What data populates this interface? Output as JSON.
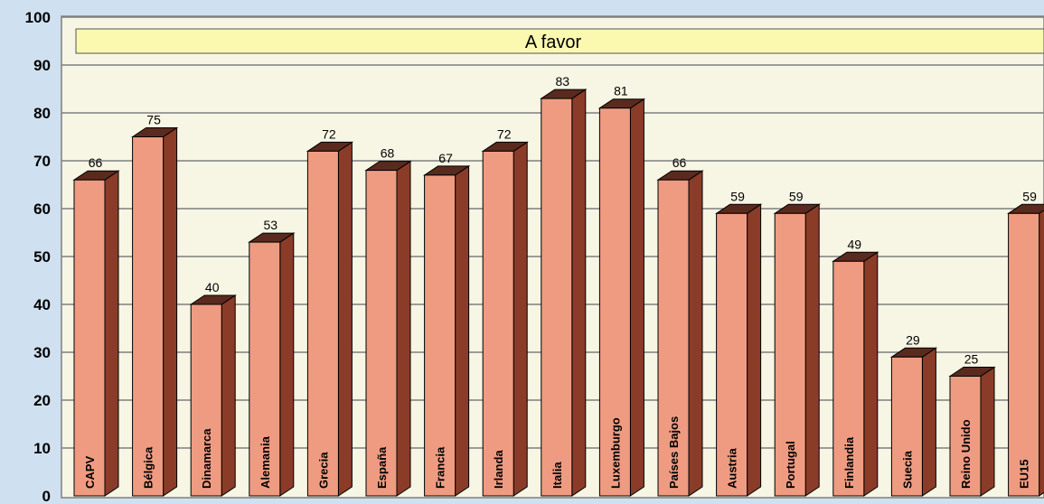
{
  "chart_data": {
    "type": "bar",
    "title": "A favor",
    "categories": [
      "CAPV",
      "Bélgica",
      "Dinamarca",
      "Alemania",
      "Grecia",
      "España",
      "Francia",
      "Irlanda",
      "Italia",
      "Luxemburgo",
      "Países Bajos",
      "Austria",
      "Portugal",
      "Finlandia",
      "Suecia",
      "Reino Unido",
      "EU15"
    ],
    "values": [
      66,
      75,
      40,
      53,
      72,
      68,
      67,
      72,
      83,
      81,
      66,
      59,
      59,
      49,
      29,
      25,
      59
    ],
    "ylim": [
      0,
      100
    ],
    "yticks": [
      "0",
      "10",
      "20",
      "30",
      "40",
      "50",
      "60",
      "70",
      "80",
      "90",
      "100"
    ],
    "grid": true,
    "bar_style": "3d",
    "colors": {
      "bar_front": "#ef9b82",
      "bar_side": "#8a3c28",
      "bar_top": "#5a2a1e",
      "plot_background": "#f7f6e4",
      "page_background": "#cfe0f0",
      "title_box": "#fbf8b0"
    }
  }
}
